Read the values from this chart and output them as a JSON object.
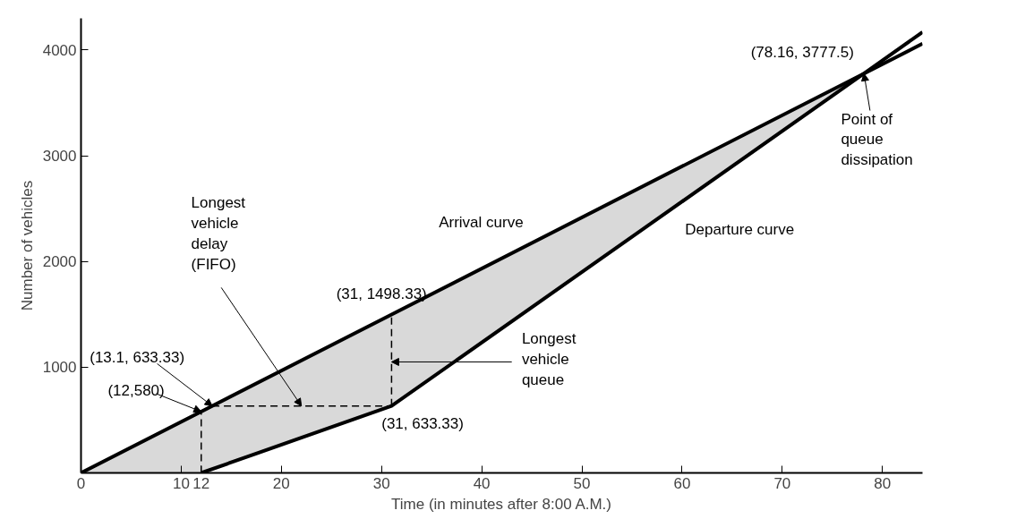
{
  "chart_data": {
    "type": "line",
    "xlabel": "Time (in minutes after 8:00 A.M.)",
    "ylabel": "Number of vehicles",
    "xlim": [
      0,
      84
    ],
    "ylim": [
      0,
      4300
    ],
    "xticks": [
      0,
      10,
      12,
      20,
      30,
      40,
      50,
      60,
      70,
      80
    ],
    "yticks": [
      1000,
      2000,
      3000,
      4000
    ],
    "grid": false,
    "series": [
      {
        "name": "Arrival curve",
        "color": "#000000",
        "x": [
          0,
          12,
          31,
          78.16,
          84
        ],
        "values": [
          0,
          580,
          1498.33,
          3777.5,
          4060
        ],
        "lower": [
          0,
          0,
          633.33,
          3777.5,
          null
        ],
        "upper": [
          0,
          580,
          1498.33,
          3777.5,
          null
        ]
      },
      {
        "name": "Departure curve",
        "color": "#000000",
        "x": [
          12,
          31,
          78.16,
          84
        ],
        "values": [
          0,
          633.33,
          3777.5,
          4170
        ]
      },
      {
        "color": "#000000",
        "line_style": "dashed",
        "x": [
          12,
          12
        ],
        "values": [
          0,
          580
        ]
      },
      {
        "color": "#000000",
        "line_style": "dashed",
        "x": [
          13.1,
          31
        ],
        "values": [
          633.33,
          633.33
        ]
      },
      {
        "color": "#000000",
        "line_style": "dashed",
        "x": [
          31,
          31
        ],
        "values": [
          633.33,
          1498.33
        ]
      }
    ],
    "annotations": [
      {
        "text": "(12,580)",
        "x": 12,
        "y": 580
      },
      {
        "text": "(13.1, 633.33)",
        "x": 13.1,
        "y": 633.33
      },
      {
        "text": "(31, 1498.33)",
        "x": 31,
        "y": 1498.33
      },
      {
        "text": "(31, 633.33)",
        "x": 31,
        "y": 633.33
      },
      {
        "text": "(78.16, 3777.5)",
        "x": 78.16,
        "y": 3777.5
      },
      {
        "text": "Longest\nvehicle\ndelay\n(FIFO)",
        "x": 22,
        "y": 633.33
      },
      {
        "text": "Longest\nvehicle\nqueue",
        "x": 31,
        "y": 1050
      },
      {
        "text": "Point of\nqueue\ndissipation",
        "x": 78.16,
        "y": 3777.5
      }
    ]
  }
}
